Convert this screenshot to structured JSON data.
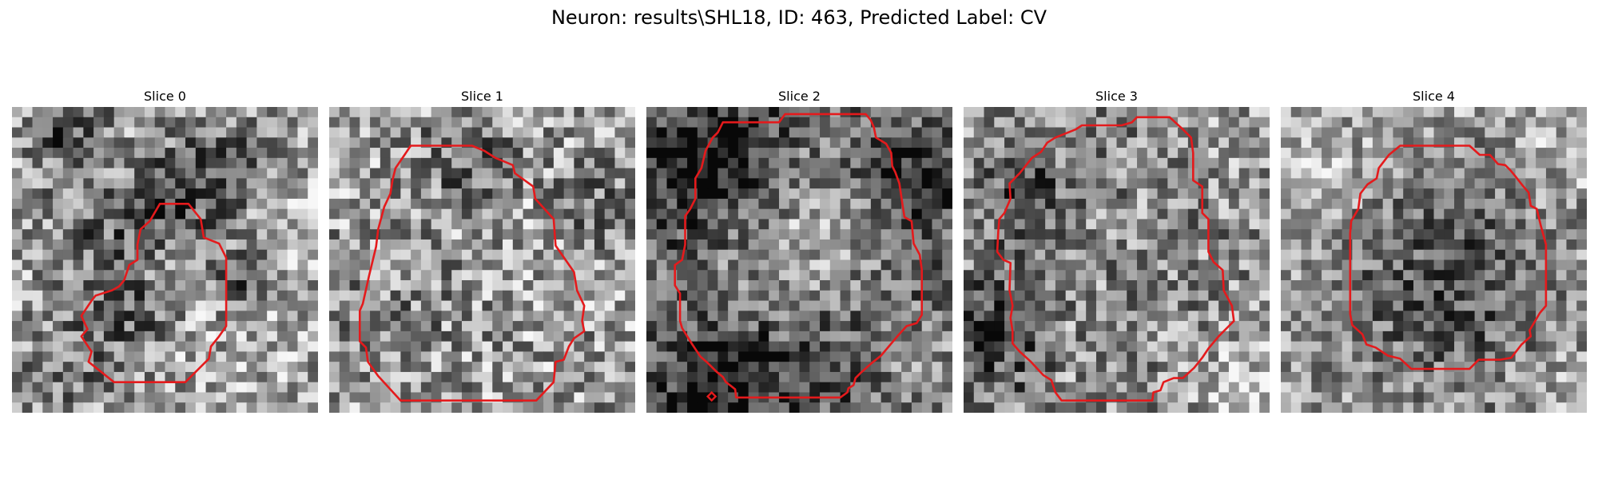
{
  "figure": {
    "title": "Neuron: results\\SHL18, ID: 463, Predicted Label: CV"
  },
  "slices": [
    {
      "title": "Slice 0",
      "contour_color": "#e41a1c"
    },
    {
      "title": "Slice 1",
      "contour_color": "#e41a1c"
    },
    {
      "title": "Slice 2",
      "contour_color": "#e41a1c"
    },
    {
      "title": "Slice 3",
      "contour_color": "#e41a1c"
    },
    {
      "title": "Slice 4",
      "contour_color": "#e41a1c"
    }
  ]
}
